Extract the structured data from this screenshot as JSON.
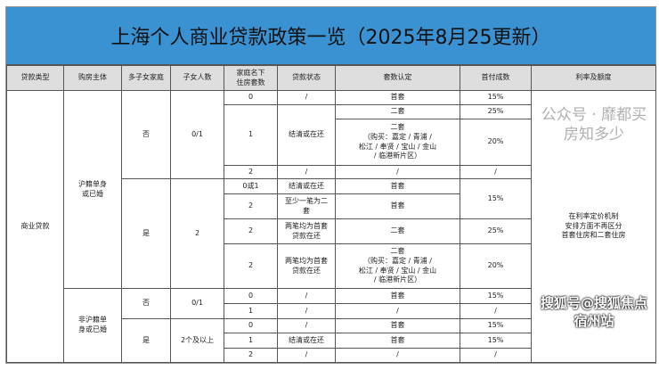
{
  "title": "上海个人商业贷款政策一览（2025年8月25更新）",
  "headers": [
    "贷款类型",
    "购房主体",
    "多子女家庭",
    "子女人数",
    "家庭名下\n住房套数",
    "贷款状态",
    "套数认定",
    "首付成数",
    "利率及额度"
  ],
  "rows": [
    [
      "商业贷款",
      "沪籍单身\n或已婚",
      "否",
      "0/1",
      "0",
      "/",
      "首套",
      "15%",
      "在利率定价机制\n安排方面不再区分\n首套住房和二套住房"
    ],
    [
      "1",
      "结清或在还",
      "二套",
      "25%"
    ],
    [
      "二套\n（购买：嘉定 / 青浦 /\n松江 / 奉贤 / 宝山 / 金山\n/ 临港新片区）",
      "20%"
    ],
    [
      "2",
      "/",
      "/",
      "/"
    ],
    [
      "是",
      "2",
      "0或1",
      "结清或在还",
      "首套",
      "15%"
    ],
    [
      "2",
      "至少一笔为二\n套",
      "首套"
    ],
    [
      "2",
      "两笔均为首套\n贷款在还",
      "二套",
      "25%"
    ],
    [
      "2",
      "两笔均为首套\n贷款在还",
      "二套\n（购买：嘉定 / 青浦 /\n松江 / 奉贤 / 宝山 / 金山\n/ 临港新片区）",
      "20%"
    ],
    [
      "非沪籍单\n身或已婚",
      "否",
      "0/1",
      "0",
      "/",
      "首套",
      "15%"
    ],
    [
      "1",
      "/",
      "/",
      "/"
    ],
    [
      "是",
      "2个及以上",
      "0",
      "/",
      "首套",
      "15%"
    ],
    [
      "1",
      "结清或在还",
      "首套",
      "15%"
    ],
    [
      "2",
      "/",
      "/",
      "/"
    ]
  ],
  "watermarks": [
    "公众号 · 靡都买房知多少",
    "搜狐号@搜狐焦点宿州站"
  ],
  "colors": {
    "title_bg": "#3a92d2",
    "header_bg": "#dedede"
  }
}
